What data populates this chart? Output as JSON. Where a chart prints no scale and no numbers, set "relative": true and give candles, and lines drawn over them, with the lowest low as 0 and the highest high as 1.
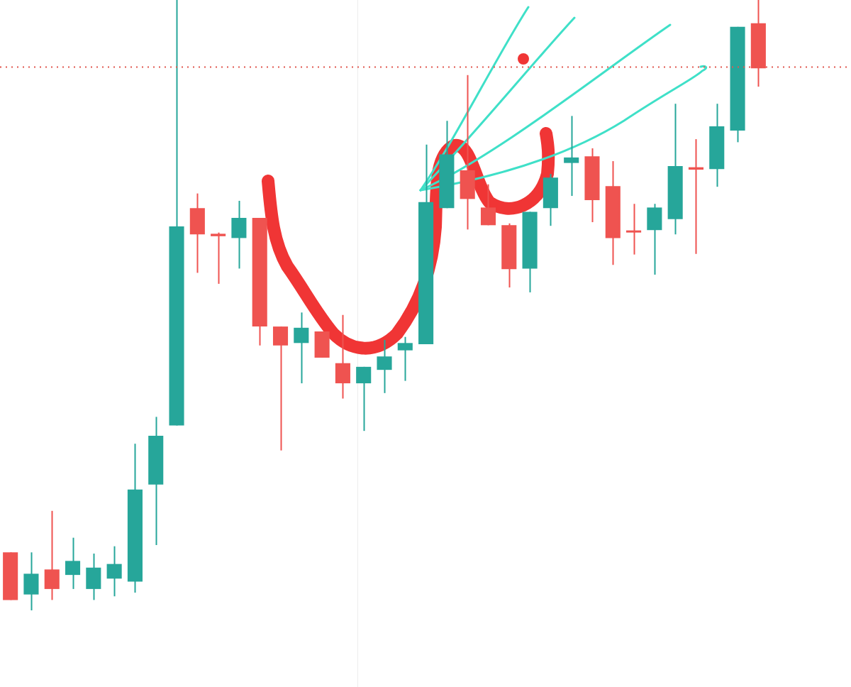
{
  "chart_data": {
    "type": "candlestick",
    "relative": true,
    "categories": [
      null,
      null,
      null,
      null,
      null,
      null,
      null,
      null,
      null,
      null,
      null,
      null,
      null,
      null,
      null,
      null,
      null,
      null,
      null,
      null,
      null,
      null,
      null,
      null,
      null,
      null,
      null,
      null,
      null,
      null,
      null,
      null,
      null,
      null,
      null,
      null,
      null
    ],
    "ohlc": [
      [
        0.095,
        0.095,
        0.017,
        0.017
      ],
      [
        0.026,
        0.095,
        0,
        0.06
      ],
      [
        0.067,
        0.163,
        0.017,
        0.035
      ],
      [
        0.058,
        0.119,
        0.035,
        0.081
      ],
      [
        0.035,
        0.093,
        0.017,
        0.07
      ],
      [
        0.052,
        0.105,
        0.023,
        0.076
      ],
      [
        0.047,
        0.273,
        0.029,
        0.198
      ],
      [
        0.206,
        0.317,
        0.107,
        0.286
      ],
      [
        0.303,
        1,
        0.303,
        0.629
      ],
      [
        0.659,
        0.683,
        0.553,
        0.616
      ],
      [
        0.617,
        0.619,
        0.535,
        0.613
      ],
      [
        0.61,
        0.671,
        0.56,
        0.643
      ],
      [
        0.643,
        0.643,
        0.434,
        0.465
      ],
      [
        0.465,
        0.465,
        0.262,
        0.434
      ],
      [
        0.438,
        0.488,
        0.372,
        0.463
      ],
      [
        0.457,
        0.457,
        0.414,
        0.414
      ],
      [
        0.405,
        0.484,
        0.347,
        0.372
      ],
      [
        0.372,
        0.399,
        0.294,
        0.399
      ],
      [
        0.394,
        0.443,
        0.356,
        0.416
      ],
      [
        0.426,
        0.448,
        0.376,
        0.438
      ],
      [
        0.436,
        0.763,
        0.436,
        0.669
      ],
      [
        0.659,
        0.802,
        0.659,
        0.747
      ],
      [
        0.721,
        0.877,
        0.624,
        0.674
      ],
      [
        0.66,
        0.698,
        0.631,
        0.631
      ],
      [
        0.631,
        0.634,
        0.529,
        0.559
      ],
      [
        0.56,
        0.653,
        0.521,
        0.653
      ],
      [
        0.659,
        0.715,
        0.63,
        0.709
      ],
      [
        0.733,
        0.81,
        0.679,
        0.742
      ],
      [
        0.744,
        0.757,
        0.636,
        0.672
      ],
      [
        0.695,
        0.736,
        0.566,
        0.61
      ],
      [
        0.622,
        0.666,
        0.583,
        0.619
      ],
      [
        0.623,
        0.666,
        0.55,
        0.66
      ],
      [
        0.641,
        0.83,
        0.616,
        0.728
      ],
      [
        0.726,
        0.772,
        0.584,
        0.722
      ],
      [
        0.723,
        0.83,
        0.694,
        0.793
      ],
      [
        0.786,
        0.956,
        0.767,
        0.956
      ],
      [
        0.962,
        1,
        0.858,
        0.888
      ]
    ],
    "colors": [
      "#ef5350",
      "#26a69a",
      "#ef5350",
      "#26a69a",
      "#26a69a",
      "#26a69a",
      "#26a69a",
      "#26a69a",
      "#26a69a",
      "#ef5350",
      "#ef5350",
      "#26a69a",
      "#ef5350",
      "#ef5350",
      "#26a69a",
      "#ef5350",
      "#ef5350",
      "#26a69a",
      "#26a69a",
      "#26a69a",
      "#26a69a",
      "#26a69a",
      "#ef5350",
      "#ef5350",
      "#ef5350",
      "#26a69a",
      "#26a69a",
      "#26a69a",
      "#ef5350",
      "#ef5350",
      "#ef5350",
      "#26a69a",
      "#26a69a",
      "#ef5350",
      "#26a69a",
      "#26a69a",
      "#ef5350"
    ],
    "ref_lines": [
      {
        "axis": "y",
        "value": 0.89,
        "color": "#e0574f",
        "line_style": "dotted"
      }
    ]
  }
}
